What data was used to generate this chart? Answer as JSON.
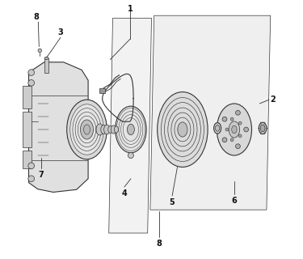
{
  "bg_color": "#ffffff",
  "line_color": "#333333",
  "label_color": "#111111",
  "figsize": [
    3.75,
    3.2
  ],
  "dpi": 100
}
